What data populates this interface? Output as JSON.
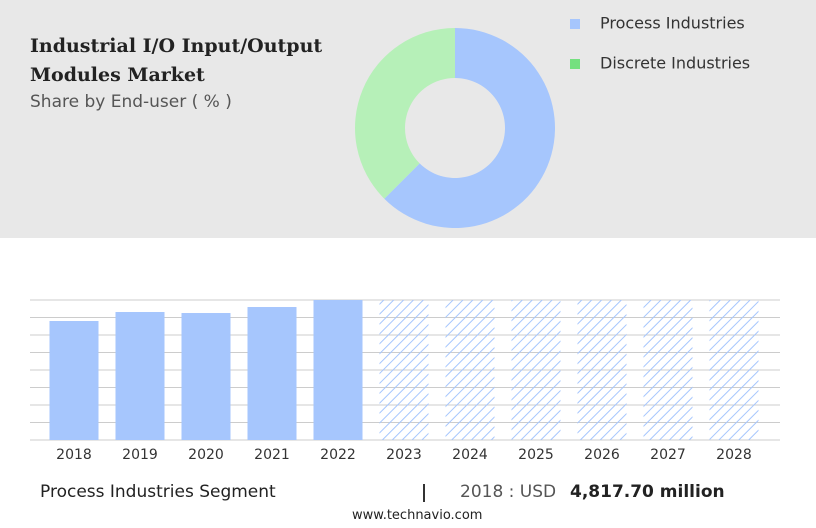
{
  "chart_data": [
    {
      "type": "donut",
      "title": "Industrial I/O Input/Output Modules Market",
      "subtitle": "Share by End-user ( % )",
      "categories": [
        "Process Industries",
        "Discrete Industries"
      ],
      "values": [
        62.5,
        37.5
      ],
      "colors": [
        "#a6c6fd",
        "#b6f0b8"
      ],
      "legend_colors": [
        "#a6c6fd",
        "#74e07f"
      ],
      "legend": "top-right"
    },
    {
      "type": "bar",
      "categories": [
        "2018",
        "2019",
        "2020",
        "2021",
        "2022",
        "2023",
        "2024",
        "2025",
        "2026",
        "2027",
        "2028"
      ],
      "values": [
        4817.7,
        5182,
        5141,
        5384,
        5668,
        null,
        null,
        null,
        null,
        null,
        null
      ],
      "color": "#a6c6fd",
      "grid": true
    }
  ],
  "footer": {
    "segment": "Process Industries Segment",
    "year_label": "2018 : USD",
    "value": "4,817.70 million",
    "source": "www.technavio.com"
  }
}
